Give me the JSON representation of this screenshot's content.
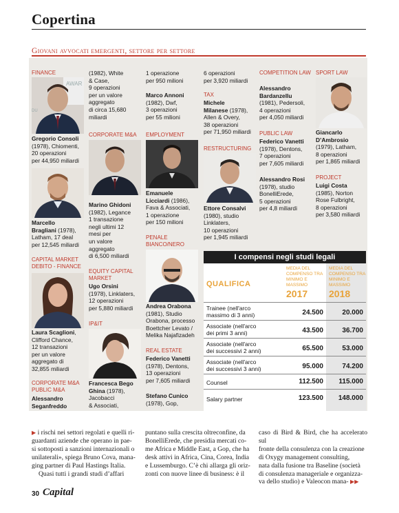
{
  "header": {
    "section": "Copertina",
    "subtitle": "Giovani avvocati emergenti, settore per settore"
  },
  "columns": {
    "c1": {
      "finance_cat": "FINANCE",
      "finance_text": [
        {
          "b": "Gregorio Consoli"
        },
        {
          "t": "(1978), Chiomenti,"
        },
        {
          "t": "20 operazioni"
        },
        {
          "t": "per 44,950 miliardi"
        }
      ],
      "marcello": [
        {
          "b": "Marcello"
        },
        {
          "b": "Bragliani"
        },
        {
          "t": "(1978),"
        },
        {
          "t": "Latham, 17 deal"
        },
        {
          "t": "per 12,545 miliardi"
        }
      ],
      "cm_cat": "CAPITAL MARKET DEBITO - FINANCE",
      "laura": [
        {
          "b": "Laura Scaglioni"
        },
        {
          "t": ","
        },
        {
          "t": "Clifford Chance,"
        },
        {
          "t": "12 transazioni"
        },
        {
          "t": "per un valore"
        },
        {
          "t": "aggregato di"
        },
        {
          "t": "32,855 miliardi"
        }
      ],
      "corp_cat": "CORPORATE M&A PUBLIC M&A",
      "alessandro": [
        {
          "b": "Alessandro"
        },
        {
          "b": "Seganfreddo"
        }
      ]
    },
    "c2": {
      "cont_lines": [
        "(1982), White",
        "& Case,",
        "9 operazioni",
        "per un valore",
        "aggregato",
        "di circa 15,680",
        "miliardi"
      ],
      "corp_cat": "CORPORATE M&A",
      "marino_name": "Marino Ghidoni",
      "marino_lines": [
        "(1982), Legance",
        "1 transazione",
        "negli ultimi 12",
        "mesi per",
        "un valore",
        "aggregato",
        "di 6,500 miliardi"
      ],
      "ecm_cat": "EQUITY CAPITAL MARKET",
      "ugo_name": "Ugo Orsini",
      "ugo_lines": [
        "(1978), Linklaters,",
        "12 operazioni",
        "per 5,880 miliardi"
      ],
      "ipit_cat": "IP&IT",
      "franc_name_1": "Francesca Bego",
      "franc_name_2": "Ghina",
      "franc_year": " (1978),",
      "franc_lines": [
        "Jacobacci",
        "& Associati,"
      ]
    },
    "c3": {
      "top_lines": [
        "1 operazione",
        "per 950 milioni"
      ],
      "marco_name": "Marco Annoni",
      "marco_lines": [
        "(1982), Dwf,",
        "3 operazioni",
        "per 55 milioni"
      ],
      "emp_cat": "EMPLOYMENT",
      "eman_name_1": "Emanuele",
      "eman_name_2": "Licciardi",
      "eman_year": " (1986),",
      "eman_lines": [
        "Fava & Associati,",
        "1 operazione",
        "per 150 milioni"
      ],
      "penale_cat": "PENALE BIANCO/NERO",
      "andrea_name": "Andrea Orabona",
      "andrea_lines": [
        "(1981), Studio",
        "Orabona, processo",
        "Boettcher Levato /",
        "Melika Najafizadeh"
      ],
      "re_cat": "REAL ESTATE",
      "federico_name": "Federico Vanetti",
      "federico_lines": [
        "(1978), Dentons,",
        "13 operazioni",
        "per 7,605 miliardi"
      ],
      "stefano_name": "Stefano Cunico",
      "stefano_lines": [
        "(1978), Gop,"
      ]
    },
    "c4": {
      "top_lines": [
        "6 operazioni",
        "per 3,920 miliardi"
      ],
      "tax_cat": "TAX",
      "michele_name_1": "Michele",
      "michele_name_2": "Milanese",
      "michele_year": " (1978),",
      "michele_lines": [
        "Allen & Overy,",
        "38 operazioni",
        "per 71,950 miliardi"
      ],
      "restr_cat": "RESTRUCTURING",
      "ettore_name": "Ettore Consalvi",
      "ettore_lines": [
        "(1980), studio",
        "Linklaters,",
        "10 operazioni",
        "per 1,945 miliardi"
      ]
    },
    "c5": {
      "comp_cat": "COMPETITION LAW",
      "ab_name_1": "Alessandro",
      "ab_name_2": "Bardanzellu",
      "ab_lines": [
        "(1981), Pedersoli,",
        "4 operazioni",
        "per 4,050 miliardi"
      ],
      "pub_cat": "PUBLIC LAW",
      "fv_name": "Federico Vanetti",
      "fv_lines": [
        "(1978), Dentons,",
        "7 operazioni",
        "per 7,605 miliardi"
      ],
      "ar_name": "Alessandro Rosi",
      "ar_lines": [
        "(1978), studio",
        "BonelliErede,",
        "5 operazioni",
        "per 4,8 miliardi"
      ]
    },
    "c6": {
      "sport_cat": "SPORT LAW",
      "gd_name_1": "Giancarlo",
      "gd_name_2": "D’Ambrosio",
      "gd_lines": [
        "(1979), Latham,",
        "8 operazioni",
        "per 1,865 miliardi"
      ],
      "proj_cat": "PROJECT",
      "lc_name": "Luigi Costa",
      "lc_lines": [
        "(1985), Norton",
        "Rose Fulbright,",
        "8 operazioni",
        "per 3,580 miliardi"
      ]
    }
  },
  "table": {
    "title": "I compensi negli studi legali",
    "qualifica": "QUALIFICA",
    "col_head_1": "MEDIA DEL COMPENSO TRA MINIMO E MASSIMO",
    "col_head_2": "MEDIA DEL COMPENSO TRA MINIMO E MASSIMO",
    "year_1": "2017",
    "year_2": "2018",
    "rows": [
      {
        "l1": "Trainee (nell'arco",
        "l2": "massimo di 3 anni)",
        "v1": "24.500",
        "v2": "20.000"
      },
      {
        "l1": "Associate (nell'arco",
        "l2": "dei primi 3 anni)",
        "v1": "43.500",
        "v2": "36.700"
      },
      {
        "l1": "Associate (nell'arco",
        "l2": "dei successivi 2 anni)",
        "v1": "65.500",
        "v2": "53.000"
      },
      {
        "l1": "Associate (nell'arco",
        "l2": "dei successivi 3 anni)",
        "v1": "95.000",
        "v2": "74.200"
      },
      {
        "l1": "Counsel",
        "l2": "",
        "v1": "112.500",
        "v2": "115.000"
      },
      {
        "l1": "Salary partner",
        "l2": "",
        "v1": "123.500",
        "v2": "148.000"
      }
    ]
  },
  "body": {
    "col1_lines": [
      "i rischi nei settori regolati e quelli ri-",
      "guardanti aziende che operano in pae-",
      "si sottoposti a sanzioni internazionali o",
      "unilaterali», spiega Bruno Cova, mana-",
      "ging partner di Paul Hastings Italia.",
      "Quasi tutti i grandi studi d’affari"
    ],
    "col2_lines": [
      "puntano sulla crescita oltreconfine, da",
      "BonelliErede, che presidia mercati co-",
      "me Africa e Middle East, a Gop, che ha",
      "desk attivi in Africa, Cina, Corea, India",
      "e Lussemburgo. C’è chi allarga gli oriz-",
      "zonti con nuove linee di business: è il"
    ],
    "col3_lines": [
      "caso di Bird & Bird, che ha accelerato sul",
      "fronte della consulenza con la creazione",
      "di Oxygy management consulting,",
      "nata dalla fusione tra Baseline (società",
      "di consulenza manageriale e organizza-",
      "va dello studio) e Valeocon mana-"
    ]
  },
  "footer": {
    "page": "30",
    "magazine": "Capital"
  }
}
